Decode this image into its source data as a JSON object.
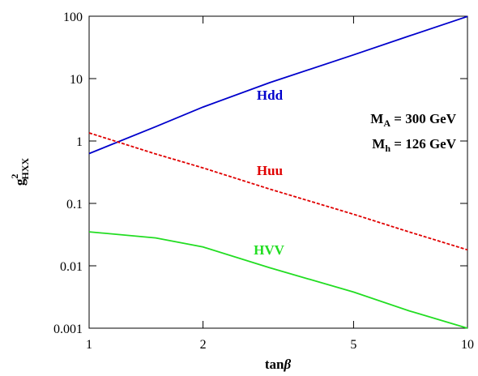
{
  "chart_data": {
    "type": "line",
    "xlog": true,
    "ylog": true,
    "x": [
      1,
      1.5,
      2,
      3,
      5,
      7,
      10
    ],
    "series": [
      {
        "name": "Hdd",
        "color": "#0000cc",
        "dash": false,
        "values": [
          0.63,
          1.7,
          3.5,
          8.6,
          24,
          48,
          99
        ]
      },
      {
        "name": "Huu",
        "color": "#e00000",
        "dash": true,
        "values": [
          1.35,
          0.62,
          0.37,
          0.17,
          0.067,
          0.035,
          0.018
        ]
      },
      {
        "name": "HVV",
        "color": "#22dd22",
        "dash": false,
        "values": [
          0.035,
          0.028,
          0.02,
          0.0093,
          0.0038,
          0.0019,
          0.001
        ]
      }
    ],
    "xlim": [
      1,
      10
    ],
    "xticks": [
      1,
      2,
      5,
      10
    ],
    "ylim": [
      0.001,
      100
    ],
    "yticks": [
      0.001,
      0.01,
      0.1,
      1,
      10,
      100
    ],
    "xlabel": {
      "main": "tan",
      "greek": "β"
    },
    "ylabel": {
      "main": "g",
      "sup": "2",
      "sub": "HXX"
    },
    "annotations": [
      {
        "main": "M",
        "sub": "A",
        "rest": " = 300 GeV"
      },
      {
        "main": "M",
        "sub": "h",
        "rest": " = 126 GeV"
      }
    ]
  }
}
